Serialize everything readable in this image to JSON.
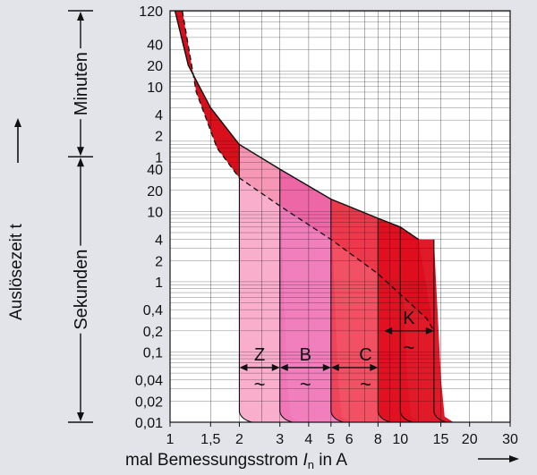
{
  "chart_data": {
    "type": "line",
    "title": "",
    "xlabel": {
      "prefix": "mal Bemessungsstrom ",
      "sym": "I",
      "sub": "n",
      "suffix": " in A"
    },
    "ylabel": "Auslösezeit t",
    "xscale": "log",
    "yscale": "log",
    "xlim": [
      1,
      30
    ],
    "ylim_seconds": [
      0.01,
      7200
    ],
    "x_ticks": [
      "1",
      "1,5",
      "2",
      "3",
      "4",
      "5",
      "6",
      "8",
      "10",
      "15",
      "20",
      "30"
    ],
    "x_tick_values": [
      1,
      1.5,
      2,
      3,
      4,
      5,
      6,
      8,
      10,
      15,
      20,
      30
    ],
    "y_ticks_minutes": [
      "120",
      "40",
      "20",
      "10",
      "4",
      "2",
      "1"
    ],
    "y_tick_minute_values": [
      120,
      40,
      20,
      10,
      4,
      2,
      1
    ],
    "y_ticks_seconds": [
      "40",
      "20",
      "10",
      "4",
      "2",
      "1",
      "0,4",
      "0,2",
      "0,1",
      "0,04",
      "0,02",
      "0,01"
    ],
    "y_tick_second_values": [
      40,
      20,
      10,
      4,
      2,
      1,
      0.4,
      0.2,
      0.1,
      0.04,
      0.02,
      0.01
    ],
    "time_ranges": [
      {
        "label": "Minuten",
        "from_s": 60,
        "to_s": 7200
      },
      {
        "label": "Sekunden",
        "from_s": 0.01,
        "to_s": 60
      }
    ],
    "thermal_band": {
      "upper_curve": [
        [
          1.05,
          7200
        ],
        [
          1.2,
          1200
        ],
        [
          1.5,
          300
        ],
        [
          2,
          90
        ],
        [
          3,
          40
        ],
        [
          5,
          15
        ],
        [
          8,
          8
        ],
        [
          10,
          6
        ],
        [
          12,
          4
        ]
      ],
      "lower_curve": [
        [
          1.13,
          7200
        ],
        [
          1.3,
          500
        ],
        [
          1.6,
          80
        ],
        [
          2,
          30
        ],
        [
          3,
          12
        ],
        [
          5,
          4
        ],
        [
          8,
          1.3
        ],
        [
          13,
          0.3
        ],
        [
          14,
          0.2
        ]
      ]
    },
    "series": [
      {
        "name": "Z",
        "instant_min": 2,
        "instant_max": 3,
        "color": "#f8a6c6"
      },
      {
        "name": "B",
        "instant_min": 3,
        "instant_max": 5,
        "color": "#f070b6"
      },
      {
        "name": "C",
        "instant_min": 5,
        "instant_max": 10,
        "color": "#ef3e52"
      },
      {
        "name": "K",
        "instant_min": 8,
        "instant_max": 14,
        "color": "#df0e1e"
      }
    ],
    "ac_symbol": "~",
    "grid": true,
    "legend": "none"
  }
}
